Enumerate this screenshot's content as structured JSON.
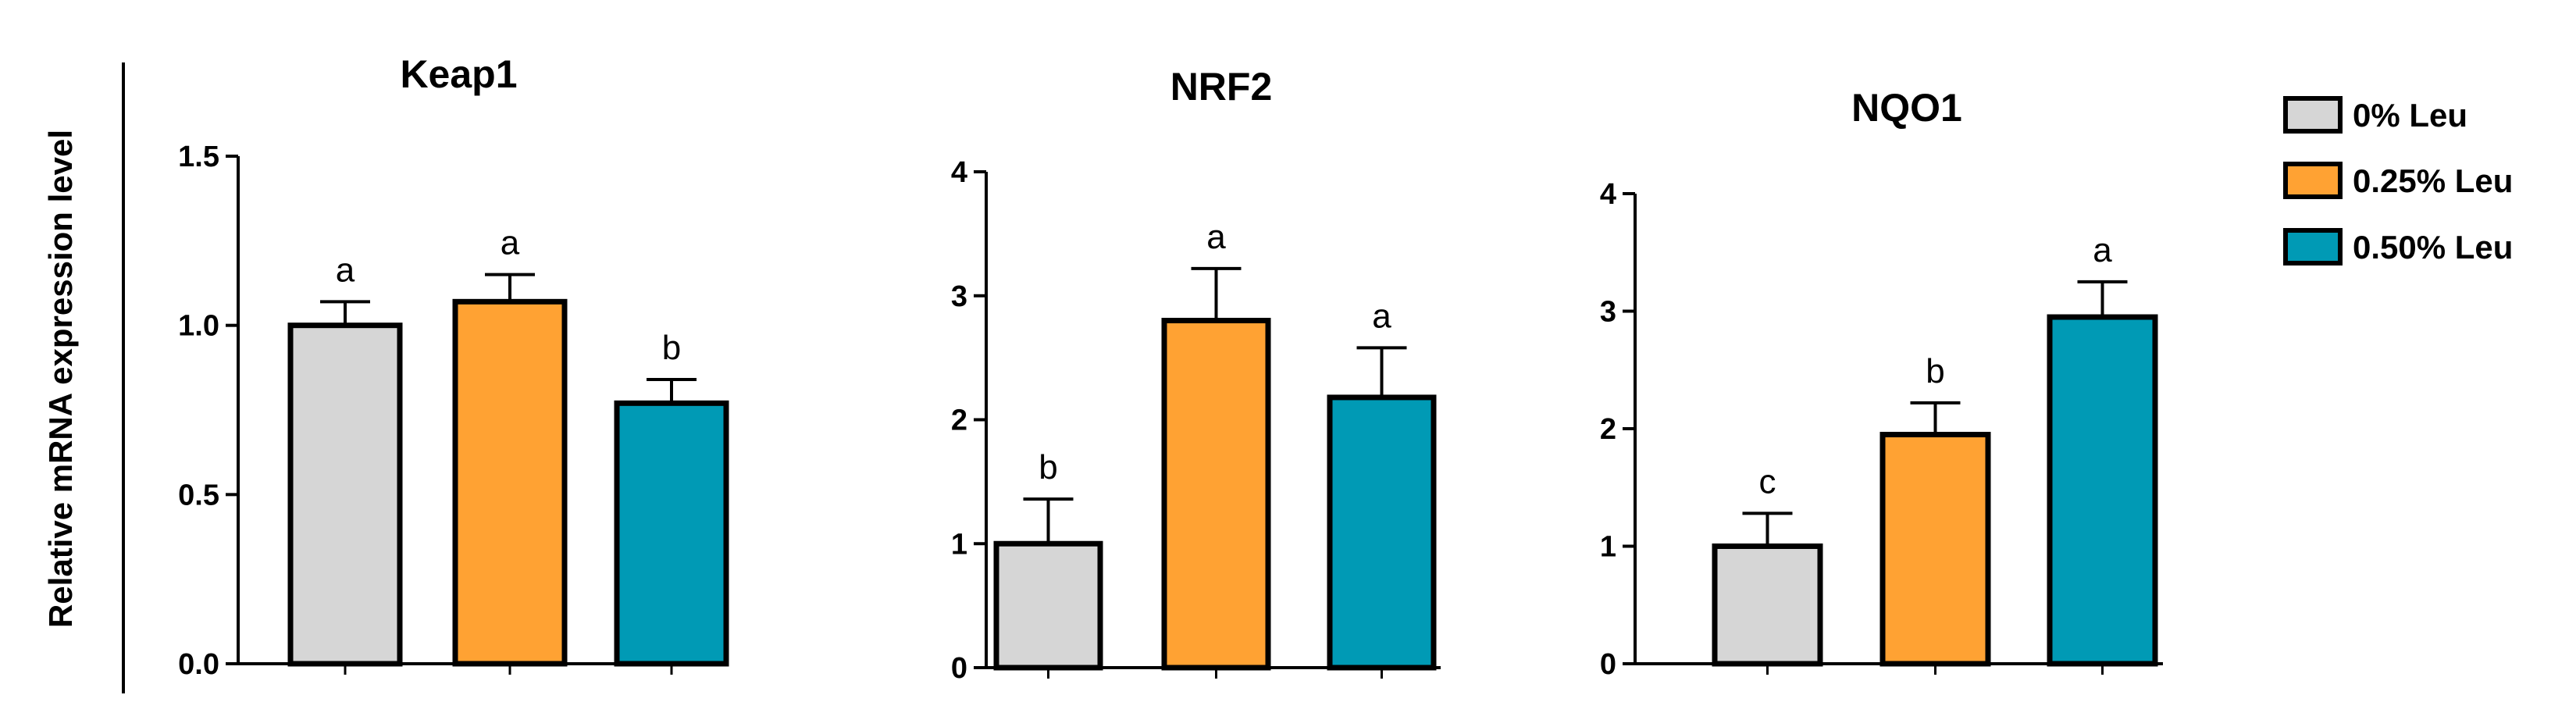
{
  "y_axis_label": "Relative mRNA expression level",
  "groups": [
    {
      "name": "0% Leu",
      "color": "#d6d6d6"
    },
    {
      "name": "0.25% Leu",
      "color": "#ffa233"
    },
    {
      "name": "0.50% Leu",
      "color": "#009ab5"
    }
  ],
  "chart_data": [
    {
      "type": "bar",
      "title": "Keap1",
      "ylabel": "Relative mRNA expression level",
      "ylim": [
        0,
        1.5
      ],
      "yticks": [
        0,
        0.5,
        1.0,
        1.5
      ],
      "ytick_labels": [
        "0.0",
        "0.5",
        "1.0",
        "1.5"
      ],
      "categories": [
        "0% Leu",
        "0.25% Leu",
        "0.50% Leu"
      ],
      "values": [
        1.0,
        1.07,
        0.77
      ],
      "errors": [
        0.07,
        0.08,
        0.07
      ],
      "sig_labels": [
        "a",
        "a",
        "b"
      ]
    },
    {
      "type": "bar",
      "title": "NRF2",
      "ylim": [
        0,
        4
      ],
      "yticks": [
        0,
        1,
        2,
        3,
        4
      ],
      "ytick_labels": [
        "0",
        "1",
        "2",
        "3",
        "4"
      ],
      "categories": [
        "0% Leu",
        "0.25% Leu",
        "0.50% Leu"
      ],
      "values": [
        1.0,
        2.8,
        2.18
      ],
      "errors": [
        0.36,
        0.42,
        0.4
      ],
      "sig_labels": [
        "b",
        "a",
        "a"
      ]
    },
    {
      "type": "bar",
      "title": "NQO1",
      "ylim": [
        0,
        4
      ],
      "yticks": [
        0,
        1,
        2,
        3,
        4
      ],
      "ytick_labels": [
        "0",
        "1",
        "2",
        "3",
        "4"
      ],
      "categories": [
        "0% Leu",
        "0.25% Leu",
        "0.50% Leu"
      ],
      "values": [
        1.0,
        1.95,
        2.95
      ],
      "errors": [
        0.28,
        0.27,
        0.3
      ],
      "sig_labels": [
        "c",
        "b",
        "a"
      ]
    }
  ]
}
